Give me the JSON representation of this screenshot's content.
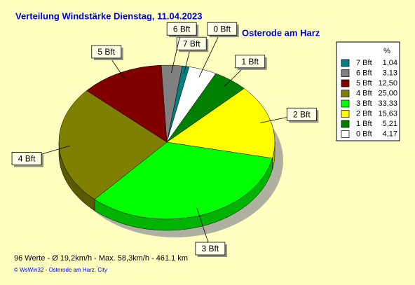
{
  "chart_data": {
    "type": "pie",
    "title": "Verteilung Windstärke  Dienstag, 11.04.2023",
    "subtitle": "Osterode am Harz",
    "legend_title": "%",
    "categories": [
      "7 Bft",
      "6 Bft",
      "5 Bft",
      "4 Bft",
      "3 Bft",
      "2 Bft",
      "1 Bft",
      "0 Bft"
    ],
    "values": [
      1.04,
      3.13,
      12.5,
      25.0,
      33.33,
      15.63,
      5.21,
      4.17
    ],
    "value_labels": [
      "1,04",
      "3,13",
      "12,50",
      "25,00",
      "33,33",
      "15,63",
      "5,21",
      "4,17"
    ],
    "colors": [
      "#008080",
      "#808080",
      "#800000",
      "#808000",
      "#00ff00",
      "#ffff00",
      "#008000",
      "#ffffff"
    ],
    "footer": "96 Werte   -   Ø 19,2km/h  -  Max. 58,3km/h   -   461.1 km",
    "credit": "© WsWin32  -  Osterode am Harz, City"
  }
}
